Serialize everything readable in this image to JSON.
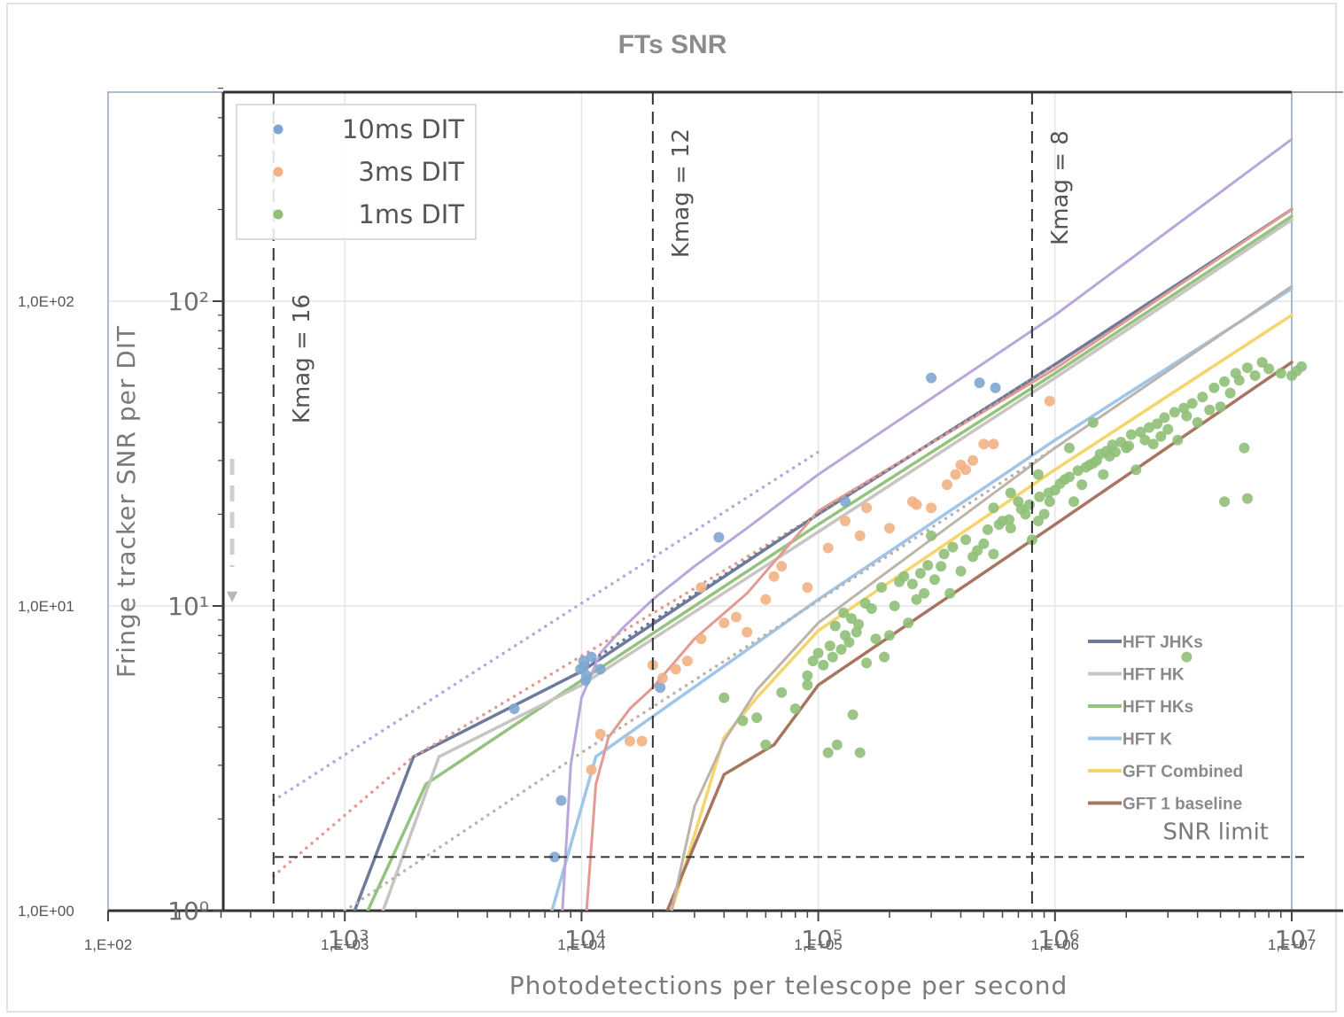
{
  "chart_data": {
    "type": "scatter",
    "title": "FTs SNR",
    "xlabel": "Photodetections per telescope per second",
    "ylabel": "Fringe tracker SNR per DIT",
    "x_scale": "log",
    "y_scale": "log",
    "xlim": [
      100,
      10000000
    ],
    "ylim": [
      1,
      500
    ],
    "grid": true,
    "x_ticks_outer": [
      "1,E+02",
      "1,E+03",
      "1,E+04",
      "1,E+05",
      "1,E+06",
      "1,E+07"
    ],
    "x_ticks_inner": [
      "10³",
      "10⁴",
      "10⁵",
      "10⁶",
      "10⁷"
    ],
    "y_ticks_outer": [
      "1,0E+00",
      "1,0E+01",
      "1,0E+02"
    ],
    "y_ticks_inner": [
      "10⁰",
      "10¹",
      "10²"
    ],
    "vertical_markers": [
      {
        "label": "Kmag = 16",
        "x": 500
      },
      {
        "label": "Kmag = 12",
        "x": 20000
      },
      {
        "label": "Kmag = 8",
        "x": 800000
      }
    ],
    "snr_limit": {
      "label": "SNR limit",
      "y": 1.5
    },
    "legend_points": [
      {
        "name": "10ms DIT",
        "color": "#7fa6d1"
      },
      {
        "name": "3ms DIT",
        "color": "#f2b183"
      },
      {
        "name": "1ms DIT",
        "color": "#8fbf78"
      }
    ],
    "legend_lines": [
      {
        "name": "HFT JHKs",
        "color": "#6d7a9a"
      },
      {
        "name": "HFT HK",
        "color": "#c8c4c0"
      },
      {
        "name": "HFT HKs",
        "color": "#93c47d"
      },
      {
        "name": "HFT K",
        "color": "#9fc5e8"
      },
      {
        "name": "GFT Combined",
        "color": "#f5d56b"
      },
      {
        "name": "GFT 1 baseline",
        "color": "#a87660"
      }
    ],
    "series": [
      {
        "name": "HFT JHKs",
        "kind": "line",
        "color": "#6d7a9a",
        "x": [
          1100,
          1950,
          10000,
          100000,
          1000000,
          10000000
        ],
        "y": [
          1,
          3.2,
          6.1,
          20,
          62,
          200
        ]
      },
      {
        "name": "HFT HKs",
        "kind": "line",
        "color": "#93c47d",
        "x": [
          1250,
          2200,
          10000,
          100000,
          1000000,
          10000000
        ],
        "y": [
          1,
          2.6,
          5.7,
          18.5,
          58,
          190
        ]
      },
      {
        "name": "HFT HK",
        "kind": "line",
        "color": "#c8c4c0",
        "x": [
          1450,
          2500,
          10000,
          100000,
          1000000,
          10000000
        ],
        "y": [
          1,
          3.2,
          5.5,
          17.5,
          56,
          185
        ]
      },
      {
        "name": "HFT K",
        "kind": "line",
        "color": "#9fc5e8",
        "x": [
          7500,
          11500,
          100000,
          1000000,
          10000000
        ],
        "y": [
          1,
          3.2,
          10.5,
          35,
          110
        ]
      },
      {
        "name": "GFT Combined",
        "kind": "line",
        "color": "#f5d56b",
        "x": [
          24000,
          40000,
          55000,
          100000,
          1000000,
          10000000
        ],
        "y": [
          1,
          3.7,
          5,
          8.3,
          28,
          90
        ]
      },
      {
        "name": "GFT 1 baseline",
        "kind": "line",
        "color": "#a87660",
        "x": [
          23000,
          40000,
          65000,
          100000,
          1000000,
          10000000
        ],
        "y": [
          1,
          2.8,
          3.5,
          5.5,
          18.5,
          63
        ]
      },
      {
        "name": "",
        "kind": "line",
        "color": "#b8a6dc",
        "x": [
          8300,
          9000,
          10000,
          12000,
          15000,
          20000,
          30000,
          50000,
          100000,
          1000000,
          10000000
        ],
        "y": [
          1,
          3,
          5,
          7,
          8.5,
          10.5,
          13.5,
          18,
          27,
          90,
          340
        ]
      },
      {
        "name": "",
        "kind": "line",
        "color": "#e39a93",
        "x": [
          10500,
          11500,
          13000,
          16000,
          20000,
          30000,
          50000,
          100000,
          1000000,
          10000000
        ],
        "y": [
          1,
          2.6,
          3.7,
          4.6,
          5.4,
          7.8,
          11,
          20.5,
          60,
          200
        ]
      },
      {
        "name": "",
        "kind": "line",
        "color": "#bcb3ab",
        "x": [
          24000,
          30000,
          40000,
          55000,
          100000,
          1000000,
          10000000
        ],
        "y": [
          1,
          2.2,
          3.6,
          5.3,
          8.8,
          33,
          112
        ]
      },
      {
        "name": "",
        "kind": "dotted",
        "color": "#b8a6dc",
        "x": [
          500,
          10000,
          100000
        ],
        "y": [
          2.3,
          10.2,
          32
        ]
      },
      {
        "name": "",
        "kind": "dotted",
        "color": "#e39a93",
        "x": [
          500,
          1950,
          100000,
          1000000
        ],
        "y": [
          1.3,
          3.2,
          20,
          62
        ]
      },
      {
        "name": "",
        "kind": "dotted",
        "color": "#6d7a9a",
        "x": [
          10000,
          100000,
          1000000
        ],
        "y": [
          6.3,
          20,
          62
        ]
      },
      {
        "name": "",
        "kind": "dotted",
        "color": "#bcb3ab",
        "x": [
          1000,
          10000,
          100000,
          1000000
        ],
        "y": [
          1,
          3.3,
          10.4,
          33
        ]
      },
      {
        "name": "10ms DIT",
        "kind": "scatter",
        "color": "#7fa6d1",
        "x": [
          5200,
          7700,
          10200,
          11000,
          10400,
          12000,
          21500,
          38000,
          130000,
          300000,
          480000,
          560000,
          8200,
          9900,
          10500,
          10200
        ],
        "y": [
          4.6,
          1.5,
          6.3,
          6.8,
          5.7,
          6.2,
          5.4,
          16.8,
          22,
          56,
          54,
          52,
          2.3,
          6.2,
          5.9,
          6.6
        ]
      },
      {
        "name": "3ms DIT",
        "kind": "scatter",
        "color": "#f2b183",
        "x": [
          11000,
          12000,
          16000,
          18000,
          20000,
          22000,
          25000,
          28000,
          32000,
          40000,
          50000,
          60000,
          70000,
          90000,
          110000,
          130000,
          160000,
          200000,
          250000,
          300000,
          350000,
          400000,
          450000,
          500000,
          550000,
          950000,
          32000,
          45000,
          65000,
          150000,
          260000,
          380000,
          420000
        ],
        "y": [
          2.9,
          3.8,
          3.6,
          3.6,
          6.4,
          5.8,
          6.2,
          6.6,
          7.8,
          8.8,
          8.2,
          10.5,
          13.5,
          11.5,
          15.5,
          19,
          21,
          18,
          22,
          21,
          25,
          29,
          30,
          34,
          34,
          47,
          11.5,
          9.2,
          12.5,
          17,
          21.5,
          27,
          28
        ]
      },
      {
        "name": "1ms DIT",
        "kind": "scatter",
        "color": "#8fbf78",
        "x": [
          40000,
          48000,
          55000,
          60000,
          70000,
          80000,
          90000,
          100000,
          110000,
          120000,
          130000,
          140000,
          150000,
          160000,
          175000,
          190000,
          200000,
          220000,
          240000,
          260000,
          280000,
          300000,
          330000,
          360000,
          400000,
          450000,
          500000,
          550000,
          600000,
          650000,
          700000,
          750000,
          800000,
          850000,
          900000,
          950000,
          1000000,
          1100000,
          1200000,
          1300000,
          1400000,
          1500000,
          1600000,
          1700000,
          1800000,
          2000000,
          2200000,
          2400000,
          2600000,
          2800000,
          3000000,
          3300000,
          3600000,
          4000000,
          4500000,
          5000000,
          5500000,
          6000000,
          7000000,
          8000000,
          9000000,
          10000000,
          10500000,
          11000000,
          115000,
          125000,
          135000,
          145000,
          90000,
          95000,
          105000,
          112000,
          118000,
          128000,
          138000,
          148000,
          158000,
          168000,
          185000,
          210000,
          230000,
          250000,
          270000,
          290000,
          310000,
          340000,
          370000,
          420000,
          470000,
          520000,
          580000,
          640000,
          720000,
          780000,
          860000,
          940000,
          1050000,
          1150000,
          1250000,
          1350000,
          1450000,
          1550000,
          1650000,
          1750000,
          1900000,
          2100000,
          2300000,
          2500000,
          2700000,
          2900000,
          3200000,
          3500000,
          3800000,
          4200000,
          4700000,
          5200000,
          5800000,
          6500000,
          7500000,
          550000,
          650000,
          850000,
          1150000,
          1450000,
          2050000,
          3600000,
          5200000,
          6300000,
          6500000
        ],
        "y": [
          5,
          4.2,
          4.3,
          3.5,
          5.2,
          4.6,
          5.5,
          7,
          3.3,
          3.5,
          8,
          4.4,
          3.3,
          6.5,
          7.8,
          6.8,
          8,
          12,
          8.8,
          10.5,
          11,
          17,
          13.5,
          11,
          13,
          14.5,
          16,
          14.8,
          19,
          18,
          22,
          20,
          16.5,
          19,
          20,
          22,
          24,
          26,
          22,
          25,
          29,
          30,
          27,
          31,
          32,
          33,
          28,
          35,
          34,
          36,
          38,
          35,
          42,
          40,
          44,
          45,
          50,
          55,
          57,
          60,
          58,
          57,
          59,
          61,
          6.8,
          7.2,
          7.6,
          8.2,
          5.9,
          6.6,
          6.4,
          7.4,
          8.6,
          9.5,
          9.1,
          8.7,
          10.2,
          9.8,
          11.5,
          10,
          12.5,
          11.8,
          12.8,
          13.6,
          12.2,
          14.8,
          15.6,
          16.5,
          15.2,
          17.8,
          18.5,
          19.2,
          20.8,
          21.5,
          22.8,
          23.5,
          25.2,
          26.5,
          27.8,
          28.5,
          29.4,
          31.5,
          32.2,
          33.8,
          34.5,
          36.5,
          37.2,
          38.5,
          39.6,
          41.5,
          43.2,
          44.6,
          46.2,
          48.5,
          52,
          54.5,
          58,
          60.5,
          63,
          21,
          23.5,
          27,
          33,
          40,
          33.5,
          6.8,
          22,
          33,
          22.5
        ]
      }
    ]
  }
}
